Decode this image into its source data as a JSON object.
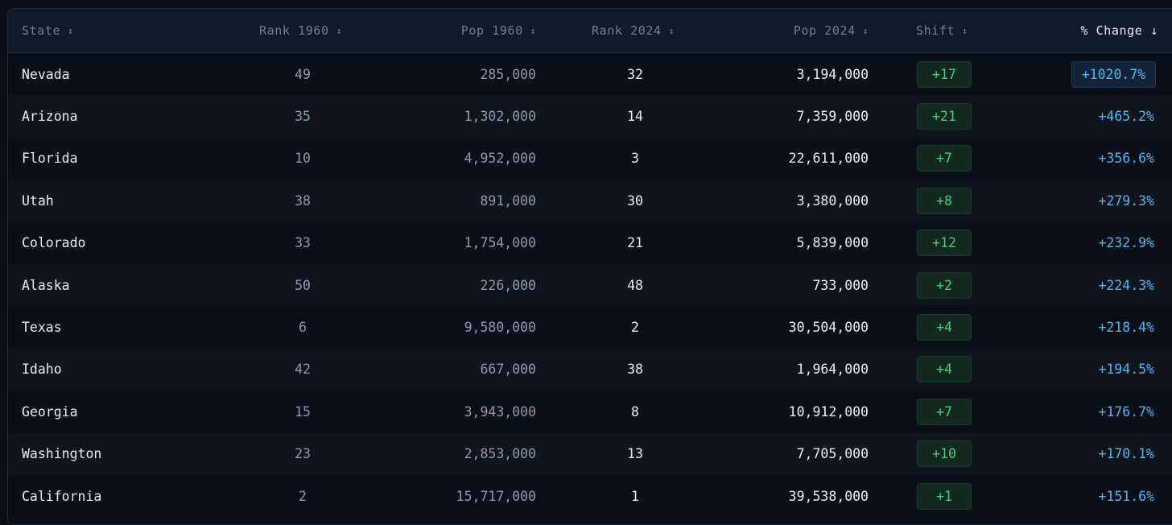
{
  "columns": {
    "state": "State",
    "rank1960": "Rank 1960",
    "pop1960": "Pop 1960",
    "rank2024": "Rank 2024",
    "pop2024": "Pop 2024",
    "shift": "Shift",
    "pct_change": "% Change"
  },
  "sort": {
    "inactive_icon": "↕",
    "active_icon": "↓",
    "active_column": "pct_change",
    "direction": "descending"
  },
  "colors": {
    "shift_positive": "#3fd07a",
    "pct_change": "#4fb6ef"
  },
  "rows": [
    {
      "state": "Nevada",
      "rank1960": "49",
      "pop1960": "285,000",
      "rank2024": "32",
      "pop2024": "3,194,000",
      "shift": "+17",
      "pct": "+1020.7%"
    },
    {
      "state": "Arizona",
      "rank1960": "35",
      "pop1960": "1,302,000",
      "rank2024": "14",
      "pop2024": "7,359,000",
      "shift": "+21",
      "pct": "+465.2%"
    },
    {
      "state": "Florida",
      "rank1960": "10",
      "pop1960": "4,952,000",
      "rank2024": "3",
      "pop2024": "22,611,000",
      "shift": "+7",
      "pct": "+356.6%"
    },
    {
      "state": "Utah",
      "rank1960": "38",
      "pop1960": "891,000",
      "rank2024": "30",
      "pop2024": "3,380,000",
      "shift": "+8",
      "pct": "+279.3%"
    },
    {
      "state": "Colorado",
      "rank1960": "33",
      "pop1960": "1,754,000",
      "rank2024": "21",
      "pop2024": "5,839,000",
      "shift": "+12",
      "pct": "+232.9%"
    },
    {
      "state": "Alaska",
      "rank1960": "50",
      "pop1960": "226,000",
      "rank2024": "48",
      "pop2024": "733,000",
      "shift": "+2",
      "pct": "+224.3%"
    },
    {
      "state": "Texas",
      "rank1960": "6",
      "pop1960": "9,580,000",
      "rank2024": "2",
      "pop2024": "30,504,000",
      "shift": "+4",
      "pct": "+218.4%"
    },
    {
      "state": "Idaho",
      "rank1960": "42",
      "pop1960": "667,000",
      "rank2024": "38",
      "pop2024": "1,964,000",
      "shift": "+4",
      "pct": "+194.5%"
    },
    {
      "state": "Georgia",
      "rank1960": "15",
      "pop1960": "3,943,000",
      "rank2024": "8",
      "pop2024": "10,912,000",
      "shift": "+7",
      "pct": "+176.7%"
    },
    {
      "state": "Washington",
      "rank1960": "23",
      "pop1960": "2,853,000",
      "rank2024": "13",
      "pop2024": "7,705,000",
      "shift": "+10",
      "pct": "+170.1%"
    },
    {
      "state": "California",
      "rank1960": "2",
      "pop1960": "15,717,000",
      "rank2024": "1",
      "pop2024": "39,538,000",
      "shift": "+1",
      "pct": "+151.6%"
    }
  ]
}
